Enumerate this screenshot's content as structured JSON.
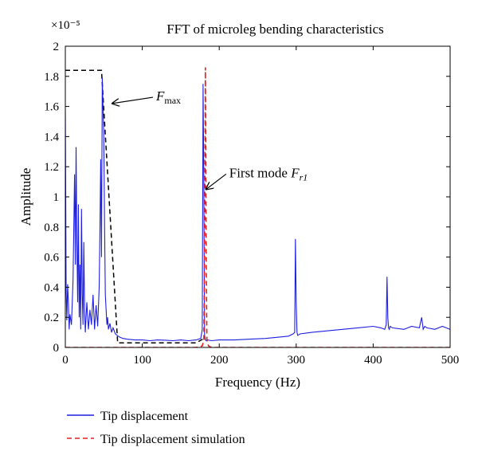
{
  "chart_data": {
    "type": "line",
    "title": "FFT of microleg bending characteristics",
    "xlabel": "Frequency (Hz)",
    "ylabel": "Amplitude",
    "y_scale_exponent_label": "×10⁻⁵",
    "xlim": [
      0,
      500
    ],
    "ylim": [
      0,
      2
    ],
    "xticks": [
      0,
      100,
      200,
      300,
      400,
      500
    ],
    "yticks": [
      0,
      0.2,
      0.4,
      0.6,
      0.8,
      1,
      1.2,
      1.4,
      1.6,
      1.8,
      2
    ],
    "ytick_labels": [
      "0",
      "0.2",
      "0.4",
      "0.6",
      "0.8",
      "1",
      "1.2",
      "1.4",
      "1.6",
      "1.8",
      "2"
    ],
    "grid": false,
    "legend_placement": "bottom-left, below axes",
    "series": [
      {
        "name": "Tip displacement",
        "color": "#1f1fe0",
        "style": "solid",
        "x": [
          0,
          1,
          2,
          3,
          4,
          5,
          6,
          8,
          10,
          12,
          13,
          14,
          15,
          16,
          17,
          18,
          19,
          20,
          21,
          22,
          23,
          24,
          25,
          26,
          28,
          30,
          32,
          34,
          36,
          38,
          40,
          42,
          44,
          45,
          46,
          47,
          48,
          49,
          50,
          51,
          52,
          53,
          54,
          55,
          56,
          58,
          60,
          62,
          65,
          70,
          75,
          80,
          90,
          100,
          110,
          120,
          130,
          140,
          150,
          160,
          170,
          176,
          178,
          179,
          180,
          181,
          182,
          183,
          185,
          190,
          200,
          220,
          240,
          260,
          280,
          290,
          296,
          298,
          299,
          300,
          301,
          302,
          305,
          320,
          340,
          360,
          380,
          400,
          410,
          415,
          417,
          418,
          419,
          420,
          421,
          422,
          425,
          440,
          450,
          460,
          463,
          465,
          467,
          470,
          480,
          490,
          500
        ],
        "y": [
          1.58,
          0.38,
          0.18,
          0.42,
          0.3,
          0.12,
          0.22,
          0.15,
          0.45,
          1.15,
          0.55,
          1.33,
          0.7,
          0.3,
          0.95,
          0.2,
          0.55,
          0.12,
          0.92,
          0.35,
          0.15,
          0.7,
          0.25,
          0.1,
          0.3,
          0.12,
          0.25,
          0.15,
          0.35,
          0.12,
          0.28,
          0.14,
          0.4,
          0.8,
          1.25,
          0.6,
          1.79,
          1.6,
          1.4,
          0.8,
          0.35,
          0.25,
          0.15,
          0.2,
          0.12,
          0.16,
          0.1,
          0.13,
          0.09,
          0.07,
          0.06,
          0.055,
          0.05,
          0.05,
          0.045,
          0.05,
          0.048,
          0.045,
          0.05,
          0.045,
          0.05,
          0.06,
          0.12,
          1.75,
          1.1,
          0.08,
          0.05,
          0.045,
          0.05,
          0.045,
          0.05,
          0.05,
          0.055,
          0.06,
          0.07,
          0.075,
          0.09,
          0.1,
          0.72,
          0.3,
          0.1,
          0.08,
          0.09,
          0.1,
          0.11,
          0.12,
          0.13,
          0.14,
          0.13,
          0.12,
          0.15,
          0.47,
          0.2,
          0.13,
          0.12,
          0.14,
          0.13,
          0.12,
          0.14,
          0.13,
          0.2,
          0.12,
          0.14,
          0.13,
          0.12,
          0.14,
          0.12
        ]
      },
      {
        "name": "Tip displacement simulation",
        "color": "#e02020",
        "style": "dashed",
        "x": [
          0,
          170,
          178,
          180,
          181,
          182,
          183,
          184,
          186,
          190,
          200,
          500
        ],
        "y": [
          0,
          0,
          0.01,
          0.05,
          0.6,
          1.86,
          0.6,
          0.05,
          0.01,
          0.0,
          0,
          0
        ]
      }
    ],
    "envelope": {
      "color": "#000000",
      "style": "dashed",
      "x": [
        0,
        47,
        68,
        170,
        180
      ],
      "y": [
        1.84,
        1.84,
        0.03,
        0.03,
        0.06
      ]
    },
    "annotations": [
      {
        "label": "F",
        "subscript": "max",
        "arrow_to": [
          61,
          1.62
        ],
        "text_at": [
          118,
          1.64
        ]
      },
      {
        "label": "First mode F",
        "subscript": "r1",
        "arrow_to": [
          183,
          1.05
        ],
        "text_at": [
          213,
          1.13
        ]
      }
    ]
  }
}
